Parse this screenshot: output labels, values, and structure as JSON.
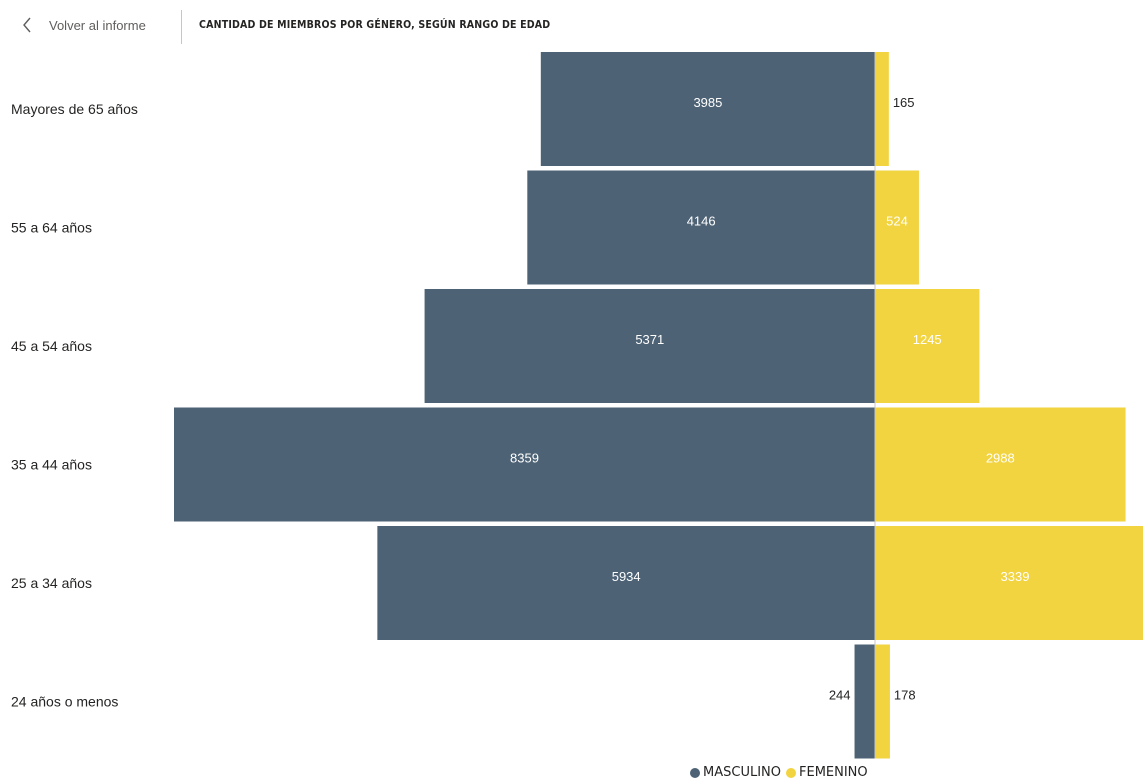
{
  "header": {
    "back_label": "Volver al informe",
    "title": "CANTIDAD DE MIEMBROS POR GÉNERO, SEGÚN RANGO DE EDAD"
  },
  "colors": {
    "masculino": "#4d6275",
    "femenino": "#f2d340"
  },
  "chart_data": {
    "type": "bar",
    "orientation": "horizontal-diverging",
    "title": "CANTIDAD DE MIEMBROS POR GÉNERO, SEGÚN RANGO DE EDAD",
    "categories": [
      "Mayores de 65 años",
      "55 a 64 años",
      "45 a 54 años",
      "35 a 44 años",
      "25 a 34 años",
      "24 años o menos"
    ],
    "series": [
      {
        "name": "MASCULINO",
        "values": [
          3985,
          4146,
          5371,
          8359,
          5934,
          244
        ]
      },
      {
        "name": "FEMENINO",
        "values": [
          165,
          524,
          1245,
          2988,
          3339,
          178
        ]
      }
    ],
    "legend": [
      "MASCULINO",
      "FEMENINO"
    ],
    "legend_position": "bottom-center"
  }
}
